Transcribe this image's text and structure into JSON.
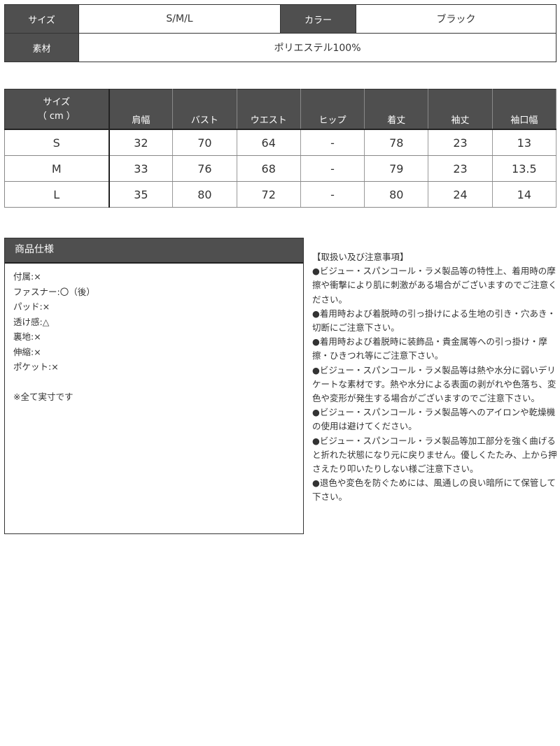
{
  "summary": {
    "size_label": "サイズ",
    "size_value": "S/M/L",
    "color_label": "カラー",
    "color_value": "ブラック",
    "material_label": "素材",
    "material_value": "ポリエステル100%"
  },
  "size_table": {
    "header_line1": "サイズ",
    "header_line2": "（ cm ）",
    "columns": [
      "肩幅",
      "バスト",
      "ウエスト",
      "ヒップ",
      "着丈",
      "袖丈",
      "袖口幅"
    ],
    "rows": [
      [
        "S",
        "32",
        "70",
        "64",
        "-",
        "78",
        "23",
        "13"
      ],
      [
        "M",
        "33",
        "76",
        "68",
        "-",
        "79",
        "23",
        "13.5"
      ],
      [
        "L",
        "35",
        "80",
        "72",
        "-",
        "80",
        "24",
        "14"
      ]
    ]
  },
  "spec": {
    "title": "商品仕様",
    "items": [
      "付属:×",
      "ファスナー:〇（後）",
      "パッド:×",
      "透け感:△",
      "裏地:×",
      "伸縮:×",
      "ポケット:×"
    ],
    "note": "※全て実寸です"
  },
  "notes": {
    "title": "【取扱い及び注意事項】",
    "items": [
      "●ビジュー・スパンコール・ラメ製品等の特性上、着用時の摩擦や衝撃により肌に刺激がある場合がございますのでご注意ください。",
      "●着用時および着脱時の引っ掛けによる生地の引き・穴あき・切断にご注意下さい。",
      "●着用時および着脱時に装飾品・貴金属等への引っ掛け・摩擦・ひきつれ等にご注意下さい。",
      "●ビジュー・スパンコール・ラメ製品等は熱や水分に弱いデリケートな素材です。熱や水分による表面の剥がれや色落ち、変色や変形が発生する場合がございますのでご注意下さい。",
      "●ビジュー・スパンコール・ラメ製品等へのアイロンや乾燥機の使用は避けてください。",
      "●ビジュー・スパンコール・ラメ製品等加工部分を強く曲げると折れた状態になり元に戻りません。優しくたたみ、上から押さえたり叩いたりしない様ご注意下さい。",
      "●退色や変色を防ぐためには、風通しの良い暗所にて保管して下さい。"
    ]
  },
  "colors": {
    "header_bg": "#4f4f4f"
  }
}
